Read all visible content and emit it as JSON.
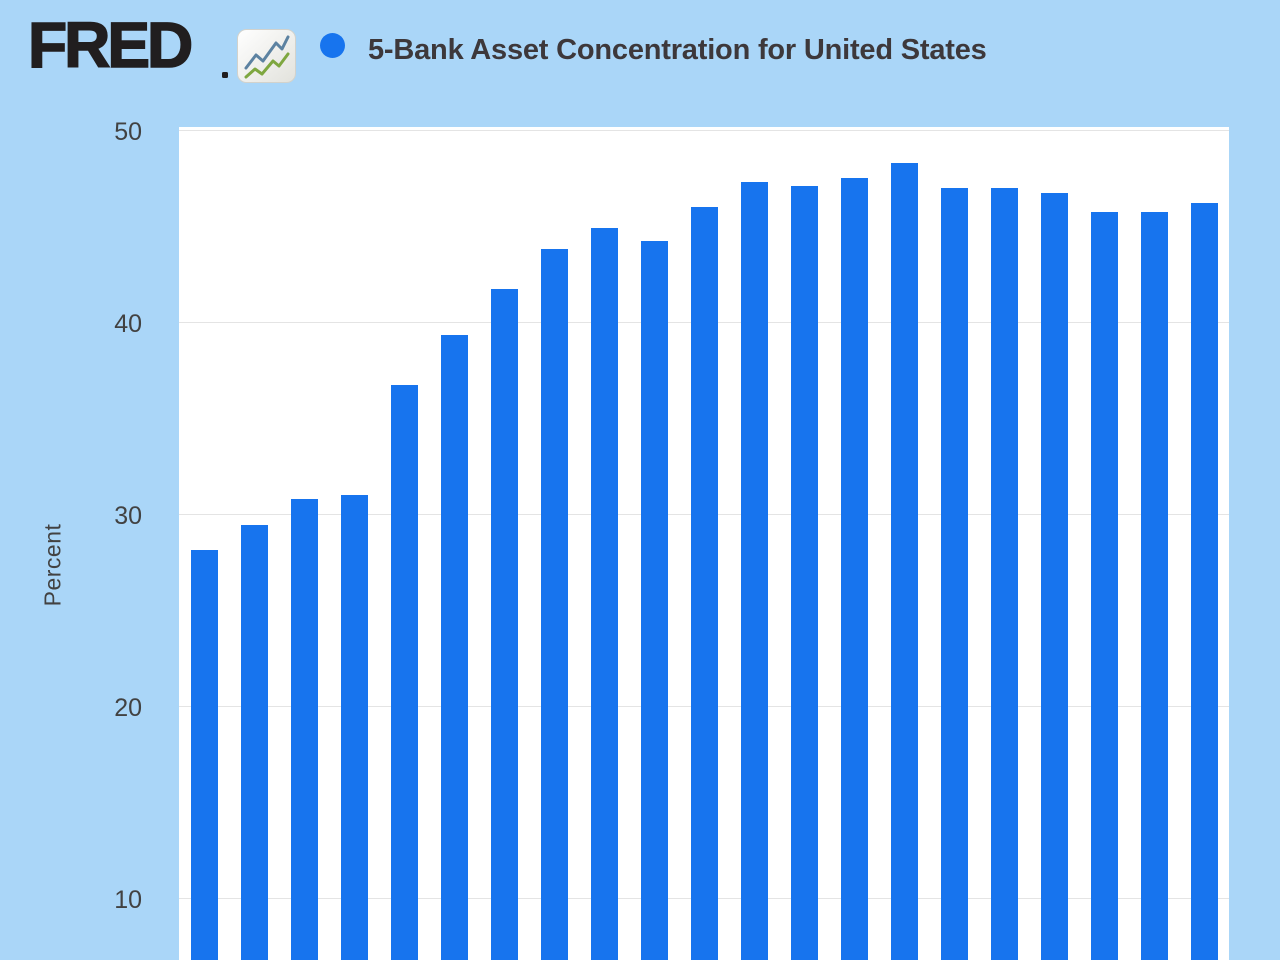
{
  "header": {
    "logo_text": "FRED",
    "logo_icon": "sparkline-card-icon",
    "legend_marker": "filled-circle",
    "title": "5-Bank Asset Concentration for United States"
  },
  "chart_data": {
    "type": "bar",
    "title": "5-Bank Asset Concentration for United States",
    "xlabel": "",
    "ylabel": "Percent",
    "x_axis_labels_visible": false,
    "bar_count": 21,
    "values": [
      28.1,
      29.4,
      30.8,
      31.0,
      36.7,
      39.3,
      41.7,
      43.8,
      44.9,
      44.2,
      46.0,
      47.3,
      47.1,
      47.5,
      48.3,
      47.0,
      47.0,
      46.7,
      45.7,
      45.7,
      46.2
    ],
    "y_ticks": [
      50,
      40,
      30,
      20,
      10
    ],
    "ylim_visible": [
      6.8,
      50.15
    ],
    "gridlines": "horizontal-only",
    "legend_position": "top"
  },
  "colors": {
    "page_background": "#aad6f8",
    "plot_background": "#ffffff",
    "gridline": "#e4e4e4",
    "bar": "#1774ee",
    "logo_text": "#211e1f",
    "title_text": "#3d383b",
    "axis_text": "#424242",
    "icon_line_blue": "#5c82a1",
    "icon_line_green": "#7ea740"
  }
}
